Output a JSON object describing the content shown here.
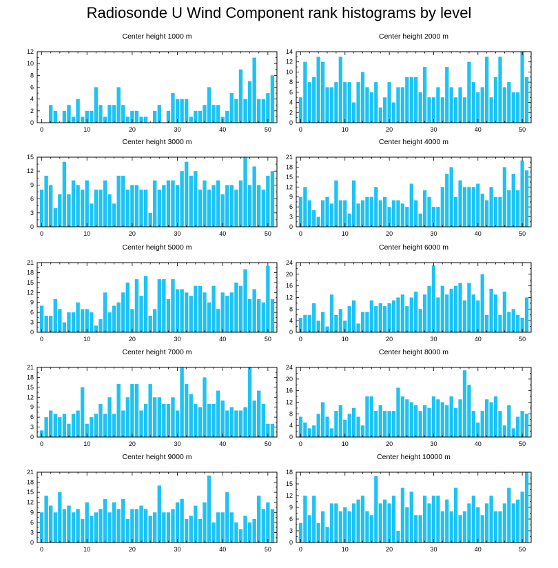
{
  "title": "Radiosonde U Wind Component rank histograms by level",
  "colors": {
    "bar": "#1ec3f4",
    "axis": "#000000",
    "background": "#ffffff"
  },
  "chart_data": [
    {
      "type": "bar",
      "title": "Center height 1000 m",
      "xlim": [
        -1,
        52
      ],
      "ylim": [
        0,
        12
      ],
      "xticks": [
        0,
        10,
        20,
        30,
        40,
        50
      ],
      "yticks": [
        0,
        2,
        4,
        6,
        8,
        10,
        12
      ],
      "x": [
        0,
        1,
        2,
        3,
        4,
        5,
        6,
        7,
        8,
        9,
        10,
        11,
        12,
        13,
        14,
        15,
        16,
        17,
        18,
        19,
        20,
        21,
        22,
        23,
        24,
        25,
        26,
        27,
        28,
        29,
        30,
        31,
        32,
        33,
        34,
        35,
        36,
        37,
        38,
        39,
        40,
        41,
        42,
        43,
        44,
        45,
        46,
        47,
        48,
        49,
        50,
        51
      ],
      "values": [
        0,
        0,
        3,
        2,
        0,
        2,
        3,
        1,
        4,
        1,
        2,
        2,
        6,
        3,
        1,
        3,
        3,
        6,
        3,
        1,
        2,
        2,
        1,
        1,
        0,
        2,
        3,
        0,
        2,
        5,
        4,
        4,
        4,
        1,
        2,
        2,
        3,
        6,
        3,
        3,
        1,
        2,
        5,
        4,
        9,
        4,
        7,
        11,
        4,
        4,
        5,
        8
      ]
    },
    {
      "type": "bar",
      "title": "Center height 2000 m",
      "xlim": [
        -1,
        52
      ],
      "ylim": [
        0,
        14
      ],
      "xticks": [
        0,
        10,
        20,
        30,
        40,
        50
      ],
      "yticks": [
        0,
        2,
        4,
        6,
        8,
        10,
        12,
        14
      ],
      "x": [
        0,
        1,
        2,
        3,
        4,
        5,
        6,
        7,
        8,
        9,
        10,
        11,
        12,
        13,
        14,
        15,
        16,
        17,
        18,
        19,
        20,
        21,
        22,
        23,
        24,
        25,
        26,
        27,
        28,
        29,
        30,
        31,
        32,
        33,
        34,
        35,
        36,
        37,
        38,
        39,
        40,
        41,
        42,
        43,
        44,
        45,
        46,
        47,
        48,
        49,
        50,
        51
      ],
      "values": [
        5,
        12,
        8,
        9,
        13,
        12,
        7,
        7,
        8,
        13,
        8,
        8,
        4,
        8,
        10,
        7,
        6,
        8,
        3,
        5,
        8,
        4,
        7,
        7,
        9,
        9,
        9,
        6,
        11,
        5,
        5,
        7,
        5,
        11,
        7,
        5,
        7,
        5,
        12,
        8,
        6,
        7,
        13,
        5,
        9,
        13,
        7,
        8,
        6,
        6,
        14,
        9
      ]
    },
    {
      "type": "bar",
      "title": "Center height 3000 m",
      "xlim": [
        -1,
        52
      ],
      "ylim": [
        0,
        15
      ],
      "xticks": [
        0,
        10,
        20,
        30,
        40,
        50
      ],
      "yticks": [
        0,
        3,
        6,
        9,
        12,
        15
      ],
      "x": [
        0,
        1,
        2,
        3,
        4,
        5,
        6,
        7,
        8,
        9,
        10,
        11,
        12,
        13,
        14,
        15,
        16,
        17,
        18,
        19,
        20,
        21,
        22,
        23,
        24,
        25,
        26,
        27,
        28,
        29,
        30,
        31,
        32,
        33,
        34,
        35,
        36,
        37,
        38,
        39,
        40,
        41,
        42,
        43,
        44,
        45,
        46,
        47,
        48,
        49,
        50,
        51
      ],
      "values": [
        8,
        11,
        9,
        4,
        7,
        14,
        7,
        10,
        9,
        8,
        10,
        5,
        8,
        8,
        10,
        7,
        5,
        11,
        11,
        8,
        9,
        9,
        8,
        8,
        3,
        10,
        8,
        9,
        10,
        10,
        9,
        12,
        14,
        11,
        12,
        8,
        10,
        8,
        9,
        10,
        7,
        9,
        9,
        8,
        10,
        15,
        9,
        13,
        9,
        8,
        11,
        12
      ]
    },
    {
      "type": "bar",
      "title": "Center height 4000 m",
      "xlim": [
        -1,
        52
      ],
      "ylim": [
        0,
        21
      ],
      "xticks": [
        0,
        10,
        20,
        30,
        40,
        50
      ],
      "yticks": [
        0,
        3,
        6,
        9,
        12,
        15,
        18,
        21
      ],
      "x": [
        0,
        1,
        2,
        3,
        4,
        5,
        6,
        7,
        8,
        9,
        10,
        11,
        12,
        13,
        14,
        15,
        16,
        17,
        18,
        19,
        20,
        21,
        22,
        23,
        24,
        25,
        26,
        27,
        28,
        29,
        30,
        31,
        32,
        33,
        34,
        35,
        36,
        37,
        38,
        39,
        40,
        41,
        42,
        43,
        44,
        45,
        46,
        47,
        48,
        49,
        50,
        51
      ],
      "values": [
        9,
        12,
        8,
        5,
        3,
        8,
        9,
        7,
        14,
        8,
        8,
        4,
        14,
        7,
        8,
        9,
        9,
        12,
        8,
        9,
        6,
        8,
        8,
        7,
        6,
        13,
        8,
        4,
        11,
        9,
        6,
        6,
        12,
        16,
        18,
        9,
        14,
        12,
        12,
        12,
        13,
        10,
        8,
        12,
        9,
        9,
        18,
        11,
        16,
        11,
        20,
        17
      ]
    },
    {
      "type": "bar",
      "title": "Center height 5000 m",
      "xlim": [
        -1,
        52
      ],
      "ylim": [
        0,
        21
      ],
      "xticks": [
        0,
        10,
        20,
        30,
        40,
        50
      ],
      "yticks": [
        0,
        3,
        6,
        9,
        12,
        15,
        18,
        21
      ],
      "x": [
        0,
        1,
        2,
        3,
        4,
        5,
        6,
        7,
        8,
        9,
        10,
        11,
        12,
        13,
        14,
        15,
        16,
        17,
        18,
        19,
        20,
        21,
        22,
        23,
        24,
        25,
        26,
        27,
        28,
        29,
        30,
        31,
        32,
        33,
        34,
        35,
        36,
        37,
        38,
        39,
        40,
        41,
        42,
        43,
        44,
        45,
        46,
        47,
        48,
        49,
        50,
        51
      ],
      "values": [
        8,
        5,
        5,
        10,
        7,
        3,
        6,
        6,
        9,
        7,
        7,
        6,
        2,
        4,
        12,
        6,
        8,
        9,
        12,
        15,
        7,
        16,
        11,
        17,
        5,
        7,
        16,
        16,
        10,
        16,
        13,
        13,
        12,
        11,
        14,
        14,
        12,
        9,
        14,
        7,
        12,
        11,
        12,
        15,
        14,
        19,
        10,
        13,
        10,
        9,
        20,
        10
      ]
    },
    {
      "type": "bar",
      "title": "Center height 6000 m",
      "xlim": [
        -1,
        52
      ],
      "ylim": [
        0,
        24
      ],
      "xticks": [
        0,
        10,
        20,
        30,
        40,
        50
      ],
      "yticks": [
        0,
        4,
        8,
        12,
        16,
        20,
        24
      ],
      "x": [
        0,
        1,
        2,
        3,
        4,
        5,
        6,
        7,
        8,
        9,
        10,
        11,
        12,
        13,
        14,
        15,
        16,
        17,
        18,
        19,
        20,
        21,
        22,
        23,
        24,
        25,
        26,
        27,
        28,
        29,
        30,
        31,
        32,
        33,
        34,
        35,
        36,
        37,
        38,
        39,
        40,
        41,
        42,
        43,
        44,
        45,
        46,
        47,
        48,
        49,
        50,
        51
      ],
      "values": [
        5,
        6,
        6,
        10,
        4,
        7,
        2,
        13,
        6,
        8,
        4,
        9,
        11,
        3,
        7,
        7,
        11,
        9,
        10,
        9,
        10,
        11,
        12,
        13,
        9,
        12,
        14,
        8,
        13,
        16,
        23,
        12,
        16,
        13,
        15,
        16,
        17,
        11,
        17,
        13,
        11,
        20,
        6,
        15,
        13,
        6,
        14,
        7,
        8,
        6,
        5,
        12
      ]
    },
    {
      "type": "bar",
      "title": "Center height 7000 m",
      "xlim": [
        -1,
        52
      ],
      "ylim": [
        0,
        21
      ],
      "xticks": [
        0,
        10,
        20,
        30,
        40,
        50
      ],
      "yticks": [
        0,
        3,
        6,
        9,
        12,
        15,
        18,
        21
      ],
      "x": [
        0,
        1,
        2,
        3,
        4,
        5,
        6,
        7,
        8,
        9,
        10,
        11,
        12,
        13,
        14,
        15,
        16,
        17,
        18,
        19,
        20,
        21,
        22,
        23,
        24,
        25,
        26,
        27,
        28,
        29,
        30,
        31,
        32,
        33,
        34,
        35,
        36,
        37,
        38,
        39,
        40,
        41,
        42,
        43,
        44,
        45,
        46,
        47,
        48,
        49,
        50,
        51
      ],
      "values": [
        2,
        6,
        8,
        7,
        6,
        7,
        4,
        7,
        8,
        15,
        4,
        6,
        7,
        10,
        7,
        12,
        7,
        16,
        8,
        12,
        16,
        16,
        8,
        10,
        16,
        12,
        12,
        10,
        10,
        12,
        8,
        21,
        16,
        13,
        10,
        9,
        18,
        10,
        10,
        14,
        11,
        8,
        9,
        8,
        8,
        9,
        21,
        11,
        14,
        10,
        4,
        4
      ]
    },
    {
      "type": "bar",
      "title": "Center height 8000 m",
      "xlim": [
        -1,
        52
      ],
      "ylim": [
        0,
        24
      ],
      "xticks": [
        0,
        10,
        20,
        30,
        40,
        50
      ],
      "yticks": [
        0,
        4,
        8,
        12,
        16,
        20,
        24
      ],
      "x": [
        0,
        1,
        2,
        3,
        4,
        5,
        6,
        7,
        8,
        9,
        10,
        11,
        12,
        13,
        14,
        15,
        16,
        17,
        18,
        19,
        20,
        21,
        22,
        23,
        24,
        25,
        26,
        27,
        28,
        29,
        30,
        31,
        32,
        33,
        34,
        35,
        36,
        37,
        38,
        39,
        40,
        41,
        42,
        43,
        44,
        45,
        46,
        47,
        48,
        49,
        50,
        51
      ],
      "values": [
        7,
        5,
        3,
        4,
        8,
        12,
        7,
        3,
        9,
        11,
        6,
        8,
        10,
        7,
        4,
        14,
        14,
        9,
        11,
        9,
        9,
        9,
        17,
        14,
        13,
        12,
        11,
        9,
        11,
        10,
        14,
        13,
        12,
        11,
        14,
        10,
        13,
        23,
        18,
        9,
        5,
        9,
        13,
        12,
        14,
        9,
        4,
        11,
        3,
        7,
        9,
        8
      ]
    },
    {
      "type": "bar",
      "title": "Center height 9000 m",
      "xlim": [
        -1,
        52
      ],
      "ylim": [
        0,
        21
      ],
      "xticks": [
        0,
        10,
        20,
        30,
        40,
        50
      ],
      "yticks": [
        0,
        3,
        6,
        9,
        12,
        15,
        18,
        21
      ],
      "x": [
        0,
        1,
        2,
        3,
        4,
        5,
        6,
        7,
        8,
        9,
        10,
        11,
        12,
        13,
        14,
        15,
        16,
        17,
        18,
        19,
        20,
        21,
        22,
        23,
        24,
        25,
        26,
        27,
        28,
        29,
        30,
        31,
        32,
        33,
        34,
        35,
        36,
        37,
        38,
        39,
        40,
        41,
        42,
        43,
        44,
        45,
        46,
        47,
        48,
        49,
        50,
        51
      ],
      "values": [
        9,
        14,
        11,
        9,
        15,
        10,
        11,
        9,
        10,
        7,
        12,
        8,
        9,
        10,
        13,
        9,
        12,
        10,
        13,
        7,
        10,
        10,
        11,
        10,
        8,
        9,
        17,
        9,
        9,
        10,
        12,
        13,
        7,
        8,
        11,
        7,
        12,
        20,
        6,
        9,
        9,
        15,
        9,
        6,
        4,
        8,
        6,
        7,
        14,
        10,
        12,
        10
      ]
    },
    {
      "type": "bar",
      "title": "Center height 10000 m",
      "xlim": [
        -1,
        52
      ],
      "ylim": [
        0,
        18
      ],
      "xticks": [
        0,
        10,
        20,
        30,
        40,
        50
      ],
      "yticks": [
        0,
        3,
        6,
        9,
        12,
        15,
        18
      ],
      "x": [
        0,
        1,
        2,
        3,
        4,
        5,
        6,
        7,
        8,
        9,
        10,
        11,
        12,
        13,
        14,
        15,
        16,
        17,
        18,
        19,
        20,
        21,
        22,
        23,
        24,
        25,
        26,
        27,
        28,
        29,
        30,
        31,
        32,
        33,
        34,
        35,
        36,
        37,
        38,
        39,
        40,
        41,
        42,
        43,
        44,
        45,
        46,
        47,
        48,
        49,
        50,
        51
      ],
      "values": [
        5,
        12,
        7,
        12,
        5,
        8,
        4,
        10,
        10,
        8,
        9,
        8,
        10,
        11,
        12,
        8,
        7,
        17,
        10,
        11,
        10,
        12,
        3,
        14,
        9,
        13,
        7,
        7,
        12,
        10,
        12,
        12,
        8,
        11,
        8,
        14,
        7,
        8,
        10,
        12,
        9,
        7,
        10,
        12,
        8,
        8,
        10,
        14,
        10,
        11,
        13,
        18
      ]
    }
  ]
}
